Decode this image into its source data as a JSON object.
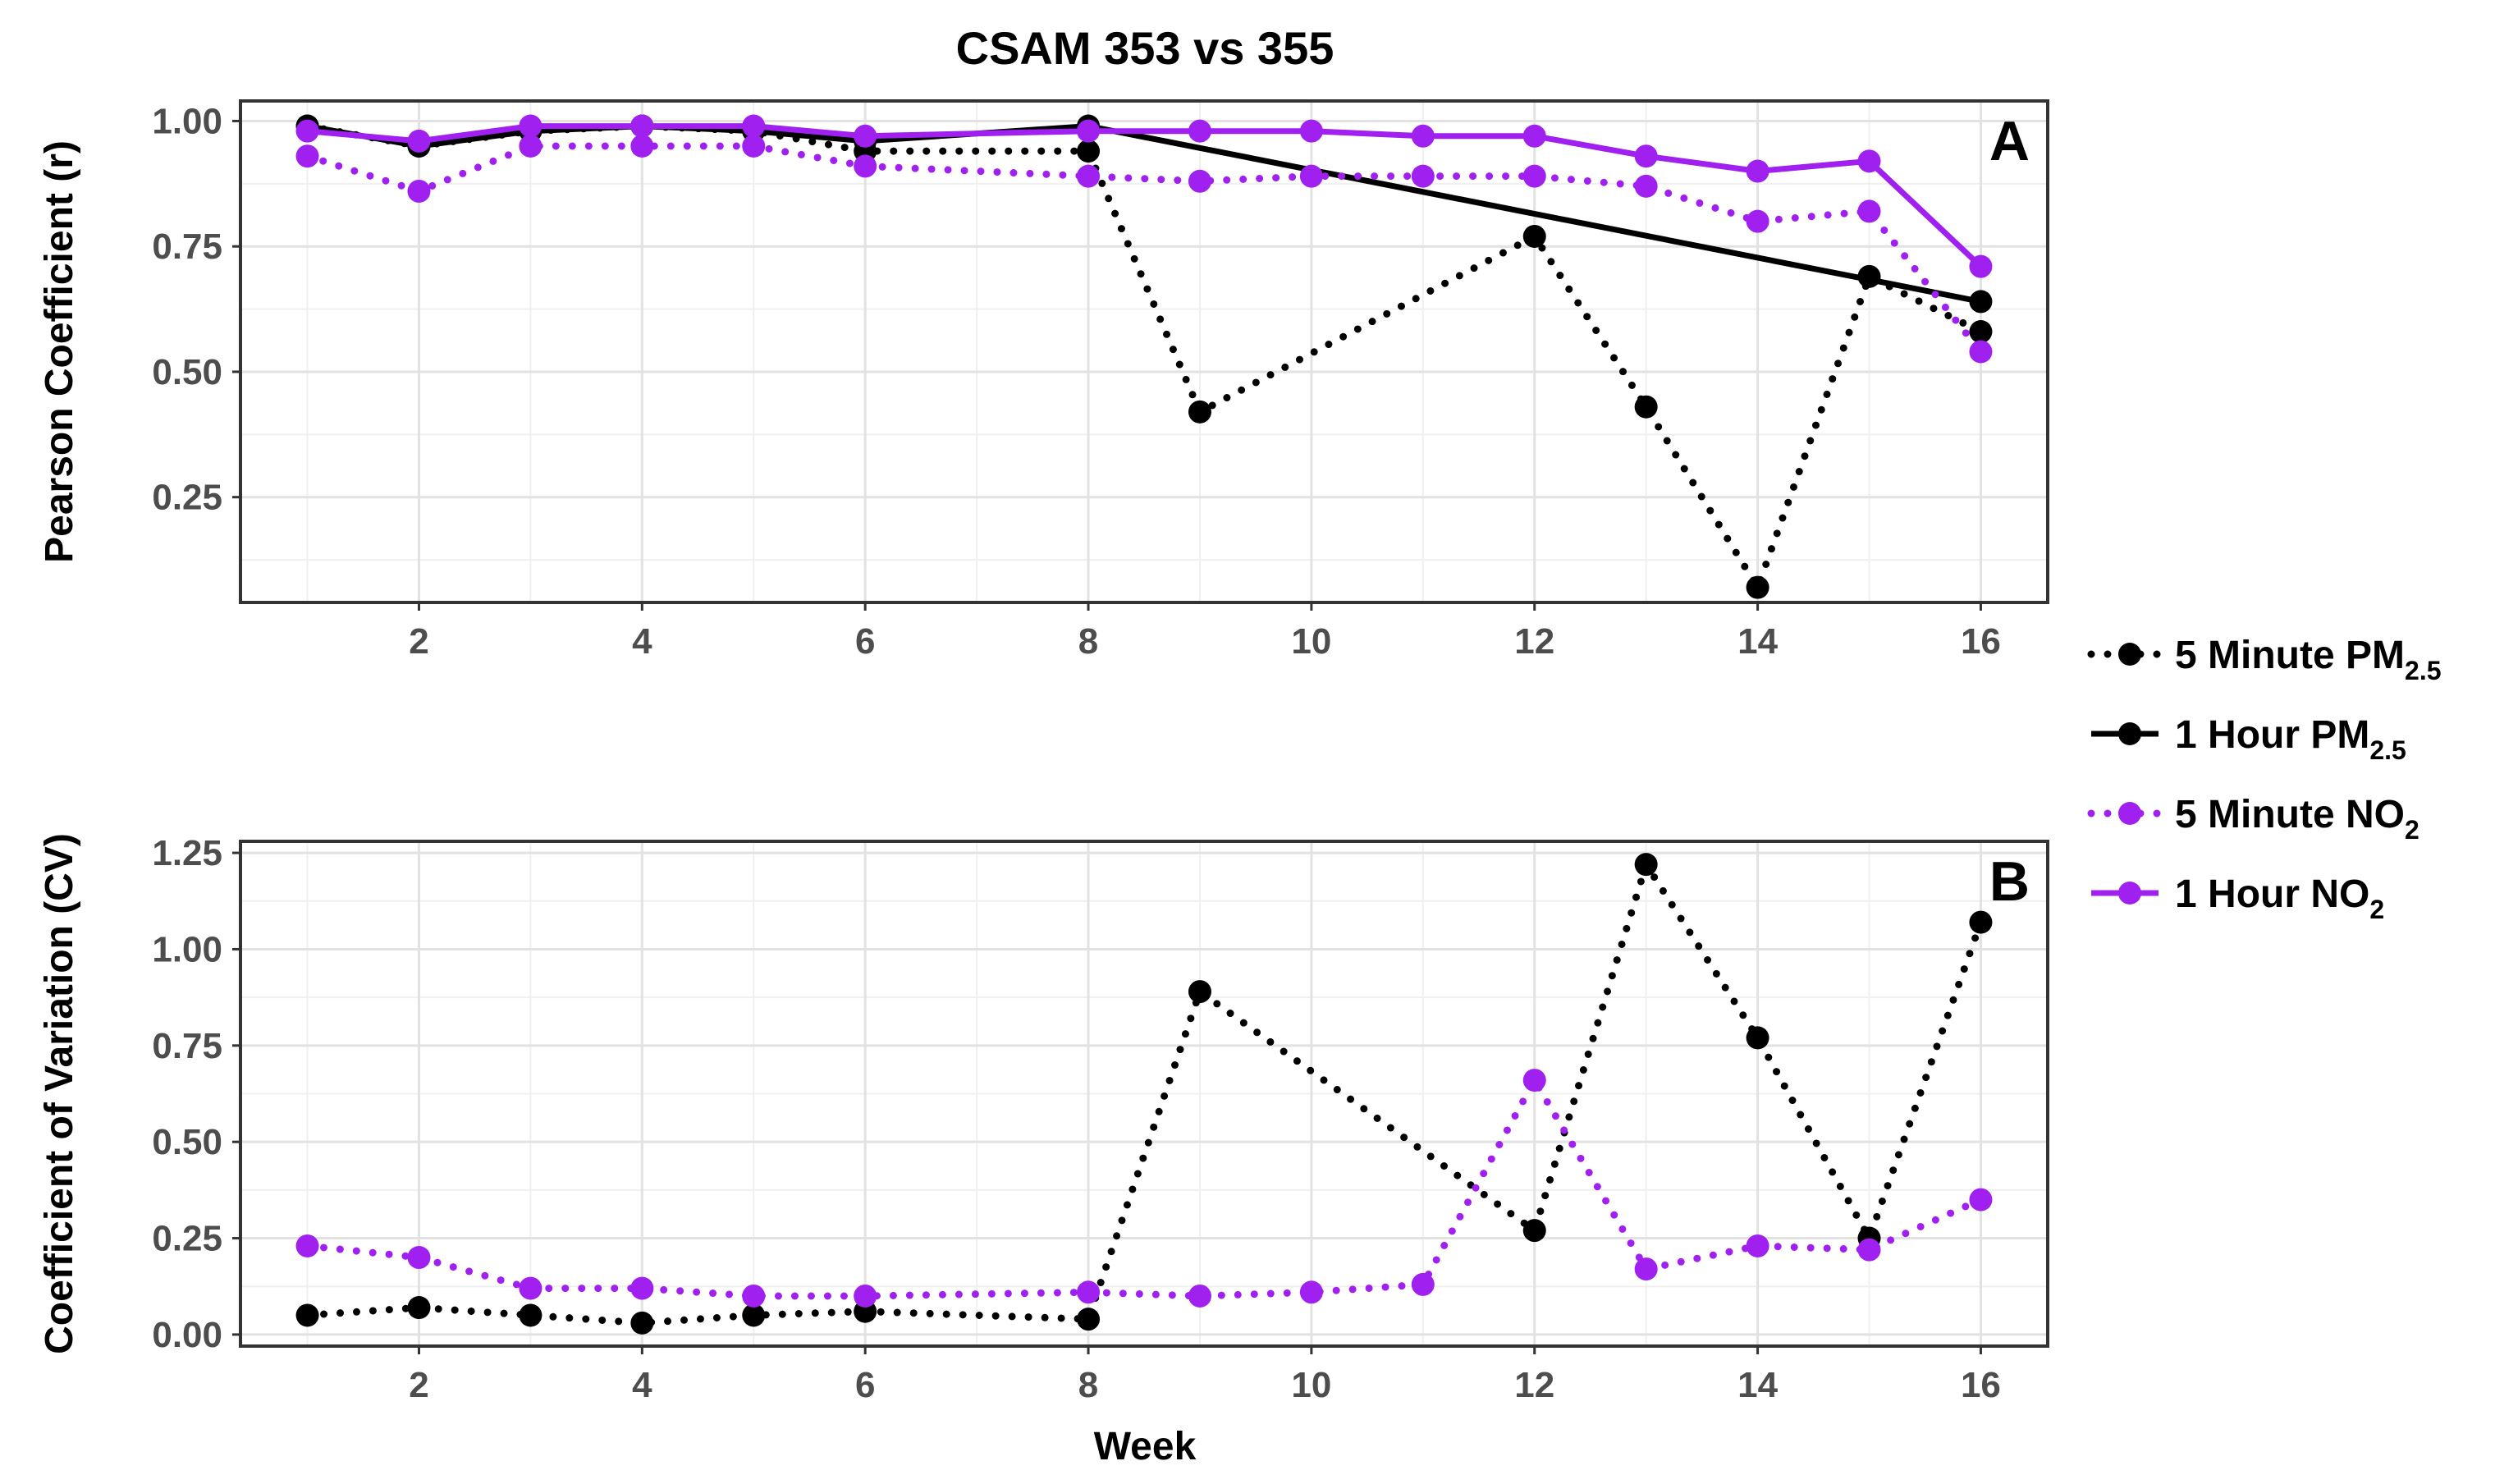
{
  "chart_data": {
    "type": "line",
    "title": "CSAM 353 vs 355",
    "xlabel": "Week",
    "x_ticks": [
      2,
      4,
      6,
      8,
      10,
      12,
      14,
      16
    ],
    "xlim": [
      0.4,
      16.6
    ],
    "legend": {
      "placement": "right",
      "entries": [
        {
          "label": "5 Minute PM",
          "sub": "2.5",
          "color": "#000000",
          "style": "dotted"
        },
        {
          "label": "1 Hour PM",
          "sub": "2.5",
          "color": "#000000",
          "style": "solid"
        },
        {
          "label": "5 Minute NO",
          "sub": "2",
          "color": "#a020f0",
          "style": "dotted"
        },
        {
          "label": "1 Hour NO",
          "sub": "2",
          "color": "#a020f0",
          "style": "solid"
        }
      ]
    },
    "panels": [
      {
        "tag": "A",
        "ylabel": "Pearson Coefficient (r)",
        "ylim": [
          0.04,
          1.04
        ],
        "y_ticks": [
          0.25,
          0.5,
          0.75,
          1.0
        ],
        "y_tick_labels": [
          "0.25",
          "0.50",
          "0.75",
          "1.00"
        ],
        "series": [
          {
            "name": "5 Minute PM2.5",
            "style": "dotted",
            "color": "#000000",
            "x": [
              1,
              2,
              3,
              4,
              5,
              6,
              8,
              9,
              12,
              13,
              14,
              15,
              16
            ],
            "y": [
              0.99,
              0.95,
              0.98,
              0.99,
              0.98,
              0.94,
              0.94,
              0.42,
              0.77,
              0.43,
              0.07,
              0.69,
              0.58
            ]
          },
          {
            "name": "1 Hour PM2.5",
            "style": "solid",
            "color": "#000000",
            "x": [
              1,
              2,
              3,
              4,
              5,
              6,
              8,
              16
            ],
            "y": [
              0.99,
              0.95,
              0.98,
              0.99,
              0.98,
              0.96,
              0.99,
              0.64
            ]
          },
          {
            "name": "5 Minute NO2",
            "style": "dotted",
            "color": "#a020f0",
            "x": [
              1,
              2,
              3,
              4,
              5,
              6,
              8,
              9,
              10,
              11,
              12,
              13,
              14,
              15,
              16
            ],
            "y": [
              0.93,
              0.86,
              0.95,
              0.95,
              0.95,
              0.91,
              0.89,
              0.88,
              0.89,
              0.89,
              0.89,
              0.87,
              0.8,
              0.82,
              0.54
            ]
          },
          {
            "name": "1 Hour NO2",
            "style": "solid",
            "color": "#a020f0",
            "x": [
              1,
              2,
              3,
              4,
              5,
              6,
              8,
              9,
              10,
              11,
              12,
              13,
              14,
              15,
              16
            ],
            "y": [
              0.98,
              0.96,
              0.99,
              0.99,
              0.99,
              0.97,
              0.98,
              0.98,
              0.98,
              0.97,
              0.97,
              0.93,
              0.9,
              0.92,
              0.71
            ]
          }
        ]
      },
      {
        "tag": "B",
        "ylabel": "Coefficient of Variation (CV)",
        "ylim": [
          -0.03,
          1.28
        ],
        "y_ticks": [
          0,
          0.25,
          0.5,
          0.75,
          1.0,
          1.25
        ],
        "y_tick_labels": [
          "0.00",
          "0.25",
          "0.50",
          "0.75",
          "1.00",
          "1.25"
        ],
        "series": [
          {
            "name": "5 Minute PM2.5",
            "style": "dotted",
            "color": "#000000",
            "x": [
              1,
              2,
              3,
              4,
              5,
              6,
              8,
              9,
              12,
              13,
              14,
              15,
              16
            ],
            "y": [
              0.05,
              0.07,
              0.05,
              0.03,
              0.05,
              0.06,
              0.04,
              0.89,
              0.27,
              1.22,
              0.77,
              0.25,
              1.07
            ]
          },
          {
            "name": "5 Minute NO2",
            "style": "dotted",
            "color": "#a020f0",
            "x": [
              1,
              2,
              3,
              4,
              5,
              6,
              8,
              9,
              10,
              11,
              12,
              13,
              14,
              15,
              16
            ],
            "y": [
              0.23,
              0.2,
              0.12,
              0.12,
              0.1,
              0.1,
              0.11,
              0.1,
              0.11,
              0.13,
              0.66,
              0.17,
              0.23,
              0.22,
              0.35
            ]
          }
        ]
      }
    ]
  }
}
